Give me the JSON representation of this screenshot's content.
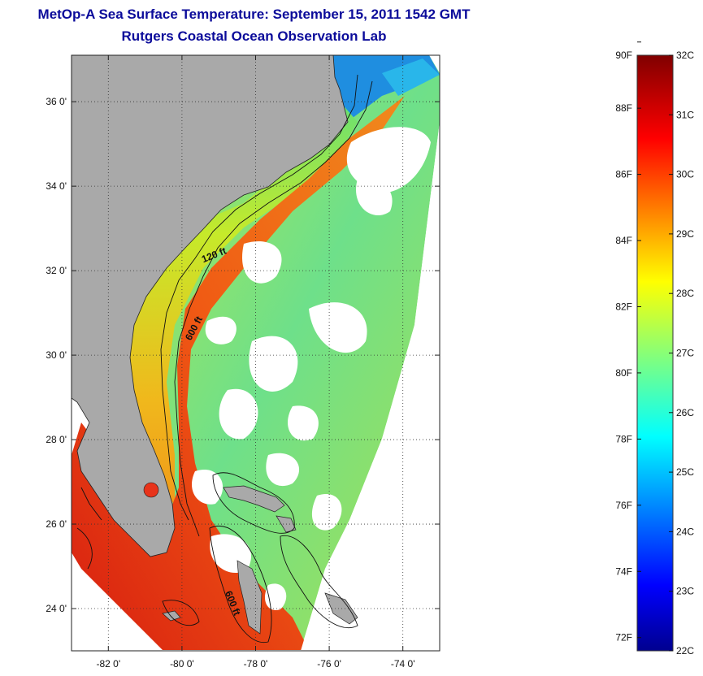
{
  "title": {
    "line1": "MetOp-A Sea Surface Temperature:  September 15, 2011 1542 GMT",
    "line2": "Rutgers Coastal Ocean Observation Lab"
  },
  "map": {
    "lat_ticks": [
      {
        "value": 36,
        "label": "36 0'"
      },
      {
        "value": 34,
        "label": "34 0'"
      },
      {
        "value": 32,
        "label": "32 0'"
      },
      {
        "value": 30,
        "label": "30 0'"
      },
      {
        "value": 28,
        "label": "28 0'"
      },
      {
        "value": 26,
        "label": "26 0'"
      },
      {
        "value": 24,
        "label": "24 0'"
      }
    ],
    "lon_ticks": [
      {
        "value": -82,
        "label": "-82 0'"
      },
      {
        "value": -80,
        "label": "-80 0'"
      },
      {
        "value": -78,
        "label": "-78 0'"
      },
      {
        "value": -76,
        "label": "-76 0'"
      },
      {
        "value": -74,
        "label": "-74 0'"
      }
    ],
    "lat_range": [
      23.0,
      37.1
    ],
    "lon_range": [
      -83.0,
      -73.0
    ],
    "grid": "dotted",
    "contour_labels": [
      {
        "text": "120 ft",
        "lon": -79.1,
        "lat": 32.3,
        "angle": -22
      },
      {
        "text": "600 ft",
        "lon": -79.6,
        "lat": 30.6,
        "angle": -62
      },
      {
        "text": "600 ft",
        "lon": -78.7,
        "lat": 24.1,
        "angle": 68
      }
    ],
    "colors": {
      "land": "#a9a9a9",
      "no_data": "#ffffff",
      "contour": "#111111"
    }
  },
  "colorbar": {
    "units_left": "F",
    "units_right": "C",
    "range_c": [
      22,
      32
    ],
    "fahrenheit_labels": [
      "90F",
      "88F",
      "86F",
      "84F",
      "82F",
      "80F",
      "78F",
      "76F",
      "74F",
      "72F"
    ],
    "celsius_labels": [
      "32C",
      "31C",
      "30C",
      "29C",
      "28C",
      "27C",
      "26C",
      "25C",
      "24C",
      "23C",
      "22C"
    ],
    "fahrenheit_values": [
      90,
      88,
      86,
      84,
      82,
      80,
      78,
      76,
      74,
      72
    ],
    "celsius_values": [
      32,
      31,
      30,
      29,
      28,
      27,
      26,
      25,
      24,
      23,
      22
    ],
    "colormap": "jet"
  }
}
